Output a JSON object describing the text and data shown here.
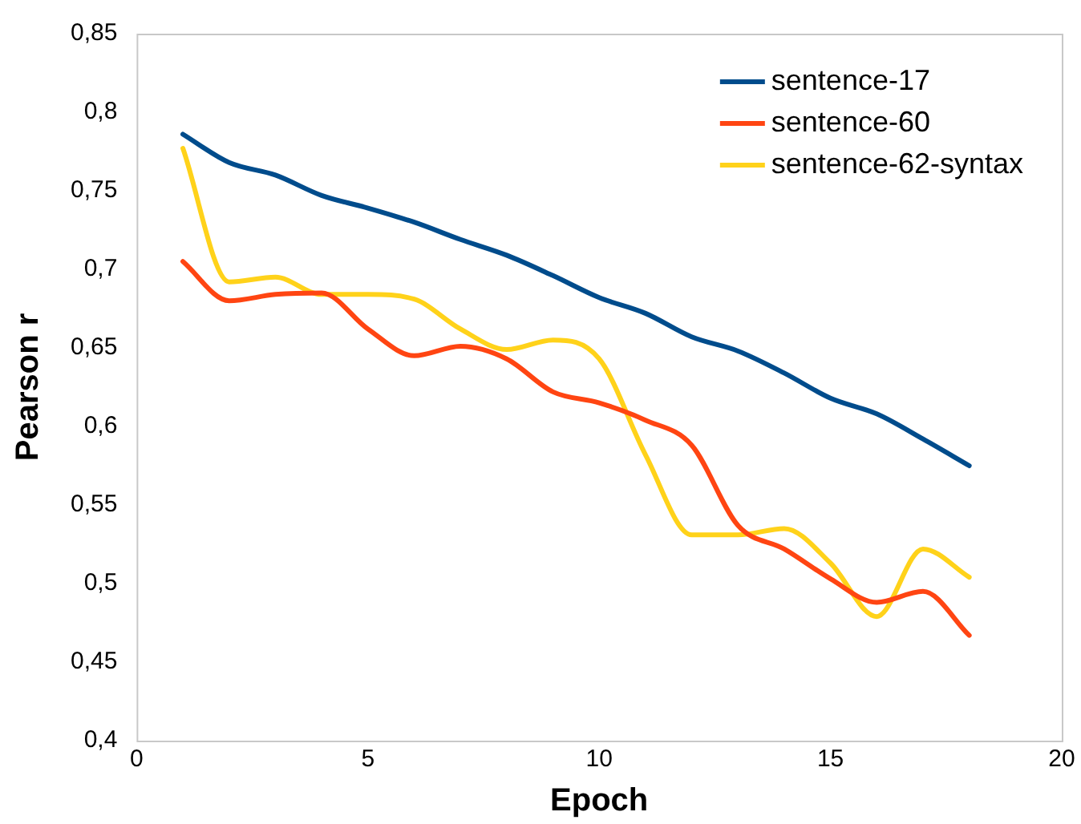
{
  "chart_data": {
    "type": "line",
    "xlabel": "Epoch",
    "ylabel": "Pearson r",
    "x": [
      1,
      2,
      3,
      4,
      5,
      6,
      7,
      8,
      9,
      10,
      11,
      12,
      13,
      14,
      15,
      16,
      17,
      18
    ],
    "series": [
      {
        "name": "sentence-17",
        "color": "#004c8c",
        "values": [
          0.786,
          0.768,
          0.76,
          0.747,
          0.739,
          0.73,
          0.719,
          0.709,
          0.696,
          0.682,
          0.672,
          0.657,
          0.648,
          0.634,
          0.618,
          0.608,
          0.592,
          0.575
        ]
      },
      {
        "name": "sentence-60",
        "color": "#ff4512",
        "values": [
          0.705,
          0.68,
          0.684,
          0.685,
          0.662,
          0.645,
          0.651,
          0.643,
          0.622,
          0.615,
          0.604,
          0.588,
          0.537,
          0.522,
          0.503,
          0.488,
          0.495,
          0.467
        ]
      },
      {
        "name": "sentence-62-syntax",
        "color": "#ffd21a",
        "values": [
          0.777,
          0.692,
          0.695,
          0.684,
          0.684,
          0.681,
          0.662,
          0.649,
          0.655,
          0.643,
          0.582,
          0.531,
          0.531,
          0.535,
          0.513,
          0.479,
          0.522,
          0.504
        ]
      }
    ],
    "xlim": [
      0,
      20
    ],
    "xticks": [
      0,
      5,
      10,
      15,
      20
    ],
    "ylim": [
      0.4,
      0.85
    ],
    "yticks": [
      {
        "value": 0.4,
        "label": "0,4"
      },
      {
        "value": 0.45,
        "label": "0,45"
      },
      {
        "value": 0.5,
        "label": "0,5"
      },
      {
        "value": 0.55,
        "label": "0,55"
      },
      {
        "value": 0.6,
        "label": "0,6"
      },
      {
        "value": 0.65,
        "label": "0,65"
      },
      {
        "value": 0.7,
        "label": "0,7"
      },
      {
        "value": 0.75,
        "label": "0,75"
      },
      {
        "value": 0.8,
        "label": "0,8"
      },
      {
        "value": 0.85,
        "label": "0,85"
      }
    ],
    "grid": false,
    "legend": "top right",
    "marker": "none",
    "line_style": "solid"
  }
}
